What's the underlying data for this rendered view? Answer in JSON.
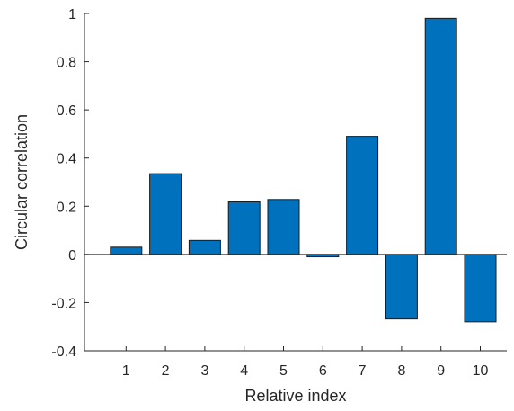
{
  "chart_data": {
    "type": "bar",
    "title": "",
    "xlabel": "Relative index",
    "ylabel": "Circular correlation",
    "categories": [
      "1",
      "2",
      "3",
      "4",
      "5",
      "6",
      "7",
      "8",
      "9",
      "10"
    ],
    "values": [
      0.03,
      0.335,
      0.058,
      0.218,
      0.228,
      -0.01,
      0.49,
      -0.268,
      0.98,
      -0.28
    ],
    "ylim": [
      -0.4,
      1
    ],
    "yticks": [
      -0.4,
      -0.2,
      0,
      0.2,
      0.4,
      0.6,
      0.8,
      1
    ],
    "ytick_labels": [
      "-0.4",
      "-0.2",
      "0",
      "0.2",
      "0.4",
      "0.6",
      "0.8",
      "1"
    ],
    "grid": false,
    "bar_color": "#0072bd",
    "bar_edge_color": "#1a1a1a",
    "axis_color": "#262626"
  }
}
